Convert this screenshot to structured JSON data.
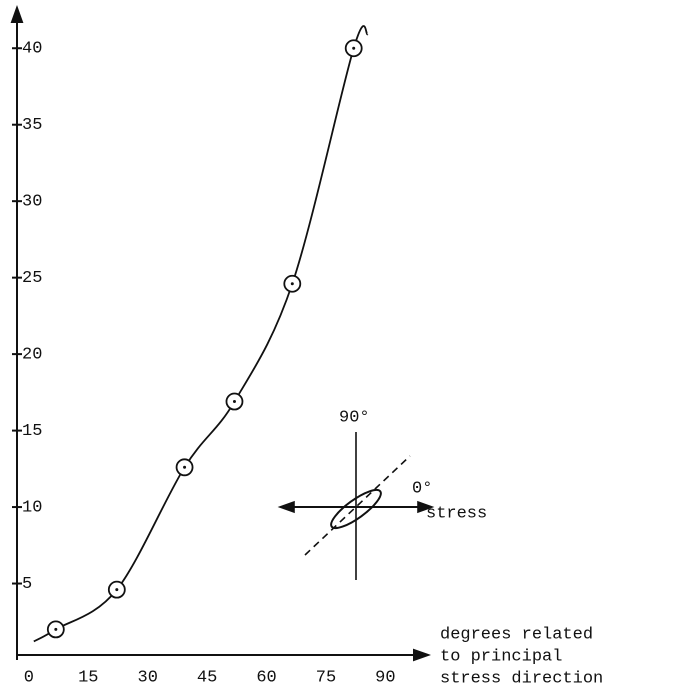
{
  "chart_data": {
    "type": "scatter",
    "x": [
      6.8,
      22.2,
      39.3,
      51.9,
      66.5,
      82
    ],
    "values": [
      2.0,
      4.6,
      12.6,
      16.9,
      24.6,
      40
    ],
    "xlim": [
      -3,
      100
    ],
    "ylim": [
      0,
      42.5
    ],
    "xticks": [
      0,
      15,
      30,
      45,
      60,
      75,
      90
    ],
    "yticks": [
      5,
      10,
      15,
      20,
      25,
      30,
      35,
      40
    ],
    "x_label": [
      "degrees related",
      "to principal",
      "stress direction"
    ],
    "inset": {
      "angle_90": "90°",
      "angle_0": "0°",
      "stress": "stress"
    },
    "color": "#111"
  }
}
